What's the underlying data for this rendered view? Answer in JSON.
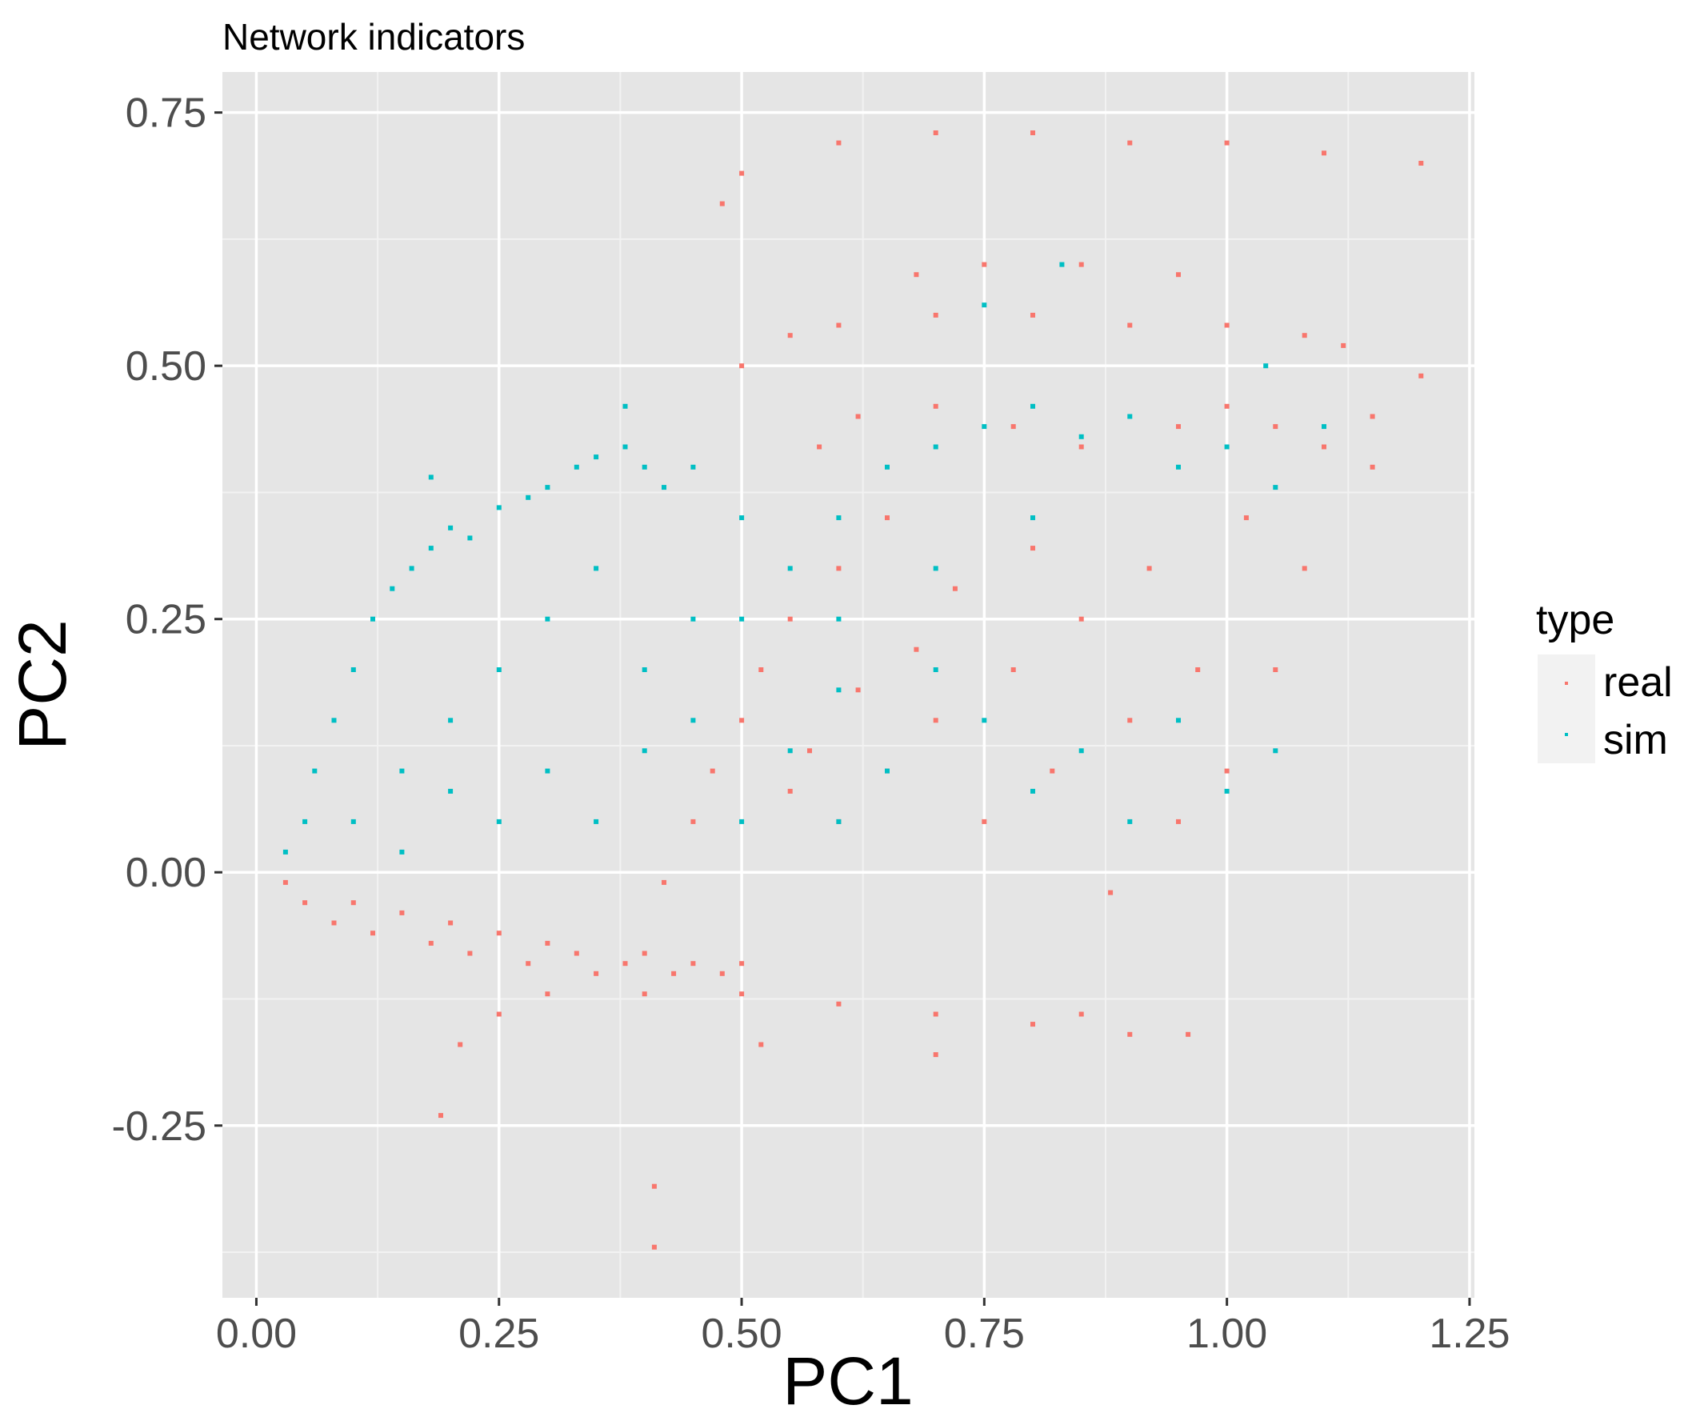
{
  "chart_data": {
    "type": "scatter",
    "title": "Network indicators",
    "xlabel": "PC1",
    "ylabel": "PC2",
    "xlim": [
      -0.035,
      1.255
    ],
    "ylim": [
      -0.42,
      0.79
    ],
    "x_ticks": [
      0.0,
      0.25,
      0.5,
      0.75,
      1.0,
      1.25
    ],
    "x_tick_labels": [
      "0.00",
      "0.25",
      "0.50",
      "0.75",
      "1.00",
      "1.25"
    ],
    "y_ticks": [
      -0.25,
      0.0,
      0.25,
      0.5,
      0.75
    ],
    "y_tick_labels": [
      "-0.25",
      "0.00",
      "0.25",
      "0.50",
      "0.75"
    ],
    "grid": true,
    "legend": {
      "title": "type",
      "position": "right"
    },
    "series": [
      {
        "name": "real",
        "color": "#F8766D",
        "points": [
          [
            0.03,
            -0.01
          ],
          [
            0.05,
            -0.03
          ],
          [
            0.08,
            -0.05
          ],
          [
            0.1,
            -0.03
          ],
          [
            0.12,
            -0.06
          ],
          [
            0.15,
            -0.04
          ],
          [
            0.18,
            -0.07
          ],
          [
            0.2,
            -0.05
          ],
          [
            0.22,
            -0.08
          ],
          [
            0.25,
            -0.06
          ],
          [
            0.28,
            -0.09
          ],
          [
            0.3,
            -0.07
          ],
          [
            0.33,
            -0.08
          ],
          [
            0.35,
            -0.1
          ],
          [
            0.38,
            -0.09
          ],
          [
            0.4,
            -0.08
          ],
          [
            0.43,
            -0.1
          ],
          [
            0.45,
            -0.09
          ],
          [
            0.48,
            -0.1
          ],
          [
            0.5,
            -0.09
          ],
          [
            0.42,
            -0.01
          ],
          [
            0.45,
            0.05
          ],
          [
            0.47,
            0.1
          ],
          [
            0.5,
            0.15
          ],
          [
            0.52,
            0.2
          ],
          [
            0.55,
            0.08
          ],
          [
            0.57,
            0.12
          ],
          [
            0.6,
            0.05
          ],
          [
            0.62,
            0.18
          ],
          [
            0.65,
            0.1
          ],
          [
            0.55,
            0.25
          ],
          [
            0.6,
            0.3
          ],
          [
            0.65,
            0.35
          ],
          [
            0.68,
            0.22
          ],
          [
            0.7,
            0.15
          ],
          [
            0.72,
            0.28
          ],
          [
            0.75,
            0.05
          ],
          [
            0.78,
            0.2
          ],
          [
            0.8,
            0.32
          ],
          [
            0.82,
            0.1
          ],
          [
            0.85,
            0.25
          ],
          [
            0.88,
            -0.02
          ],
          [
            0.9,
            0.15
          ],
          [
            0.92,
            0.3
          ],
          [
            0.95,
            0.05
          ],
          [
            0.97,
            0.2
          ],
          [
            1.0,
            0.1
          ],
          [
            1.02,
            0.35
          ],
          [
            1.05,
            0.2
          ],
          [
            1.08,
            0.3
          ],
          [
            0.58,
            0.42
          ],
          [
            0.62,
            0.45
          ],
          [
            0.7,
            0.46
          ],
          [
            0.78,
            0.44
          ],
          [
            0.85,
            0.42
          ],
          [
            0.95,
            0.44
          ],
          [
            1.0,
            0.46
          ],
          [
            1.05,
            0.44
          ],
          [
            1.1,
            0.42
          ],
          [
            1.15,
            0.4
          ],
          [
            0.5,
            0.5
          ],
          [
            0.55,
            0.53
          ],
          [
            0.6,
            0.54
          ],
          [
            0.7,
            0.55
          ],
          [
            0.8,
            0.55
          ],
          [
            0.9,
            0.54
          ],
          [
            1.0,
            0.54
          ],
          [
            1.08,
            0.53
          ],
          [
            1.12,
            0.52
          ],
          [
            0.68,
            0.59
          ],
          [
            0.75,
            0.6
          ],
          [
            0.85,
            0.6
          ],
          [
            0.95,
            0.59
          ],
          [
            0.48,
            0.66
          ],
          [
            0.5,
            0.69
          ],
          [
            0.6,
            0.72
          ],
          [
            0.7,
            0.73
          ],
          [
            0.8,
            0.73
          ],
          [
            0.9,
            0.72
          ],
          [
            1.0,
            0.72
          ],
          [
            1.1,
            0.71
          ],
          [
            1.2,
            0.7
          ],
          [
            0.21,
            -0.17
          ],
          [
            0.25,
            -0.14
          ],
          [
            0.3,
            -0.12
          ],
          [
            0.4,
            -0.12
          ],
          [
            0.5,
            -0.12
          ],
          [
            0.6,
            -0.13
          ],
          [
            0.7,
            -0.14
          ],
          [
            0.8,
            -0.15
          ],
          [
            0.9,
            -0.16
          ],
          [
            0.96,
            -0.16
          ],
          [
            0.19,
            -0.24
          ],
          [
            0.41,
            -0.31
          ],
          [
            0.41,
            -0.37
          ],
          [
            1.2,
            0.49
          ],
          [
            1.15,
            0.45
          ],
          [
            0.52,
            -0.17
          ],
          [
            0.7,
            -0.18
          ],
          [
            0.85,
            -0.14
          ]
        ]
      },
      {
        "name": "sim",
        "color": "#00BFC4",
        "points": [
          [
            0.03,
            0.02
          ],
          [
            0.05,
            0.05
          ],
          [
            0.06,
            0.1
          ],
          [
            0.08,
            0.15
          ],
          [
            0.1,
            0.2
          ],
          [
            0.12,
            0.25
          ],
          [
            0.14,
            0.28
          ],
          [
            0.16,
            0.3
          ],
          [
            0.18,
            0.32
          ],
          [
            0.2,
            0.34
          ],
          [
            0.22,
            0.33
          ],
          [
            0.25,
            0.36
          ],
          [
            0.28,
            0.37
          ],
          [
            0.3,
            0.38
          ],
          [
            0.33,
            0.4
          ],
          [
            0.35,
            0.41
          ],
          [
            0.38,
            0.42
          ],
          [
            0.4,
            0.4
          ],
          [
            0.42,
            0.38
          ],
          [
            0.45,
            0.4
          ],
          [
            0.1,
            0.05
          ],
          [
            0.15,
            0.1
          ],
          [
            0.2,
            0.15
          ],
          [
            0.25,
            0.2
          ],
          [
            0.3,
            0.25
          ],
          [
            0.35,
            0.3
          ],
          [
            0.4,
            0.2
          ],
          [
            0.45,
            0.15
          ],
          [
            0.5,
            0.25
          ],
          [
            0.55,
            0.3
          ],
          [
            0.6,
            0.35
          ],
          [
            0.65,
            0.4
          ],
          [
            0.7,
            0.42
          ],
          [
            0.75,
            0.44
          ],
          [
            0.8,
            0.46
          ],
          [
            0.85,
            0.43
          ],
          [
            0.9,
            0.45
          ],
          [
            0.95,
            0.4
          ],
          [
            1.0,
            0.42
          ],
          [
            1.05,
            0.38
          ],
          [
            0.5,
            0.05
          ],
          [
            0.55,
            0.12
          ],
          [
            0.6,
            0.18
          ],
          [
            0.65,
            0.1
          ],
          [
            0.7,
            0.2
          ],
          [
            0.75,
            0.15
          ],
          [
            0.8,
            0.08
          ],
          [
            0.85,
            0.12
          ],
          [
            0.9,
            0.05
          ],
          [
            0.95,
            0.15
          ],
          [
            1.0,
            0.08
          ],
          [
            1.05,
            0.12
          ],
          [
            0.3,
            0.1
          ],
          [
            0.35,
            0.05
          ],
          [
            0.4,
            0.12
          ],
          [
            0.2,
            0.08
          ],
          [
            0.25,
            0.05
          ],
          [
            0.15,
            0.02
          ],
          [
            0.6,
            0.25
          ],
          [
            0.7,
            0.3
          ],
          [
            0.83,
            0.6
          ],
          [
            0.75,
            0.56
          ],
          [
            1.04,
            0.5
          ],
          [
            1.1,
            0.44
          ],
          [
            0.38,
            0.46
          ],
          [
            0.18,
            0.39
          ],
          [
            0.6,
            0.05
          ],
          [
            0.45,
            0.25
          ],
          [
            0.5,
            0.35
          ],
          [
            0.8,
            0.35
          ]
        ]
      }
    ]
  }
}
